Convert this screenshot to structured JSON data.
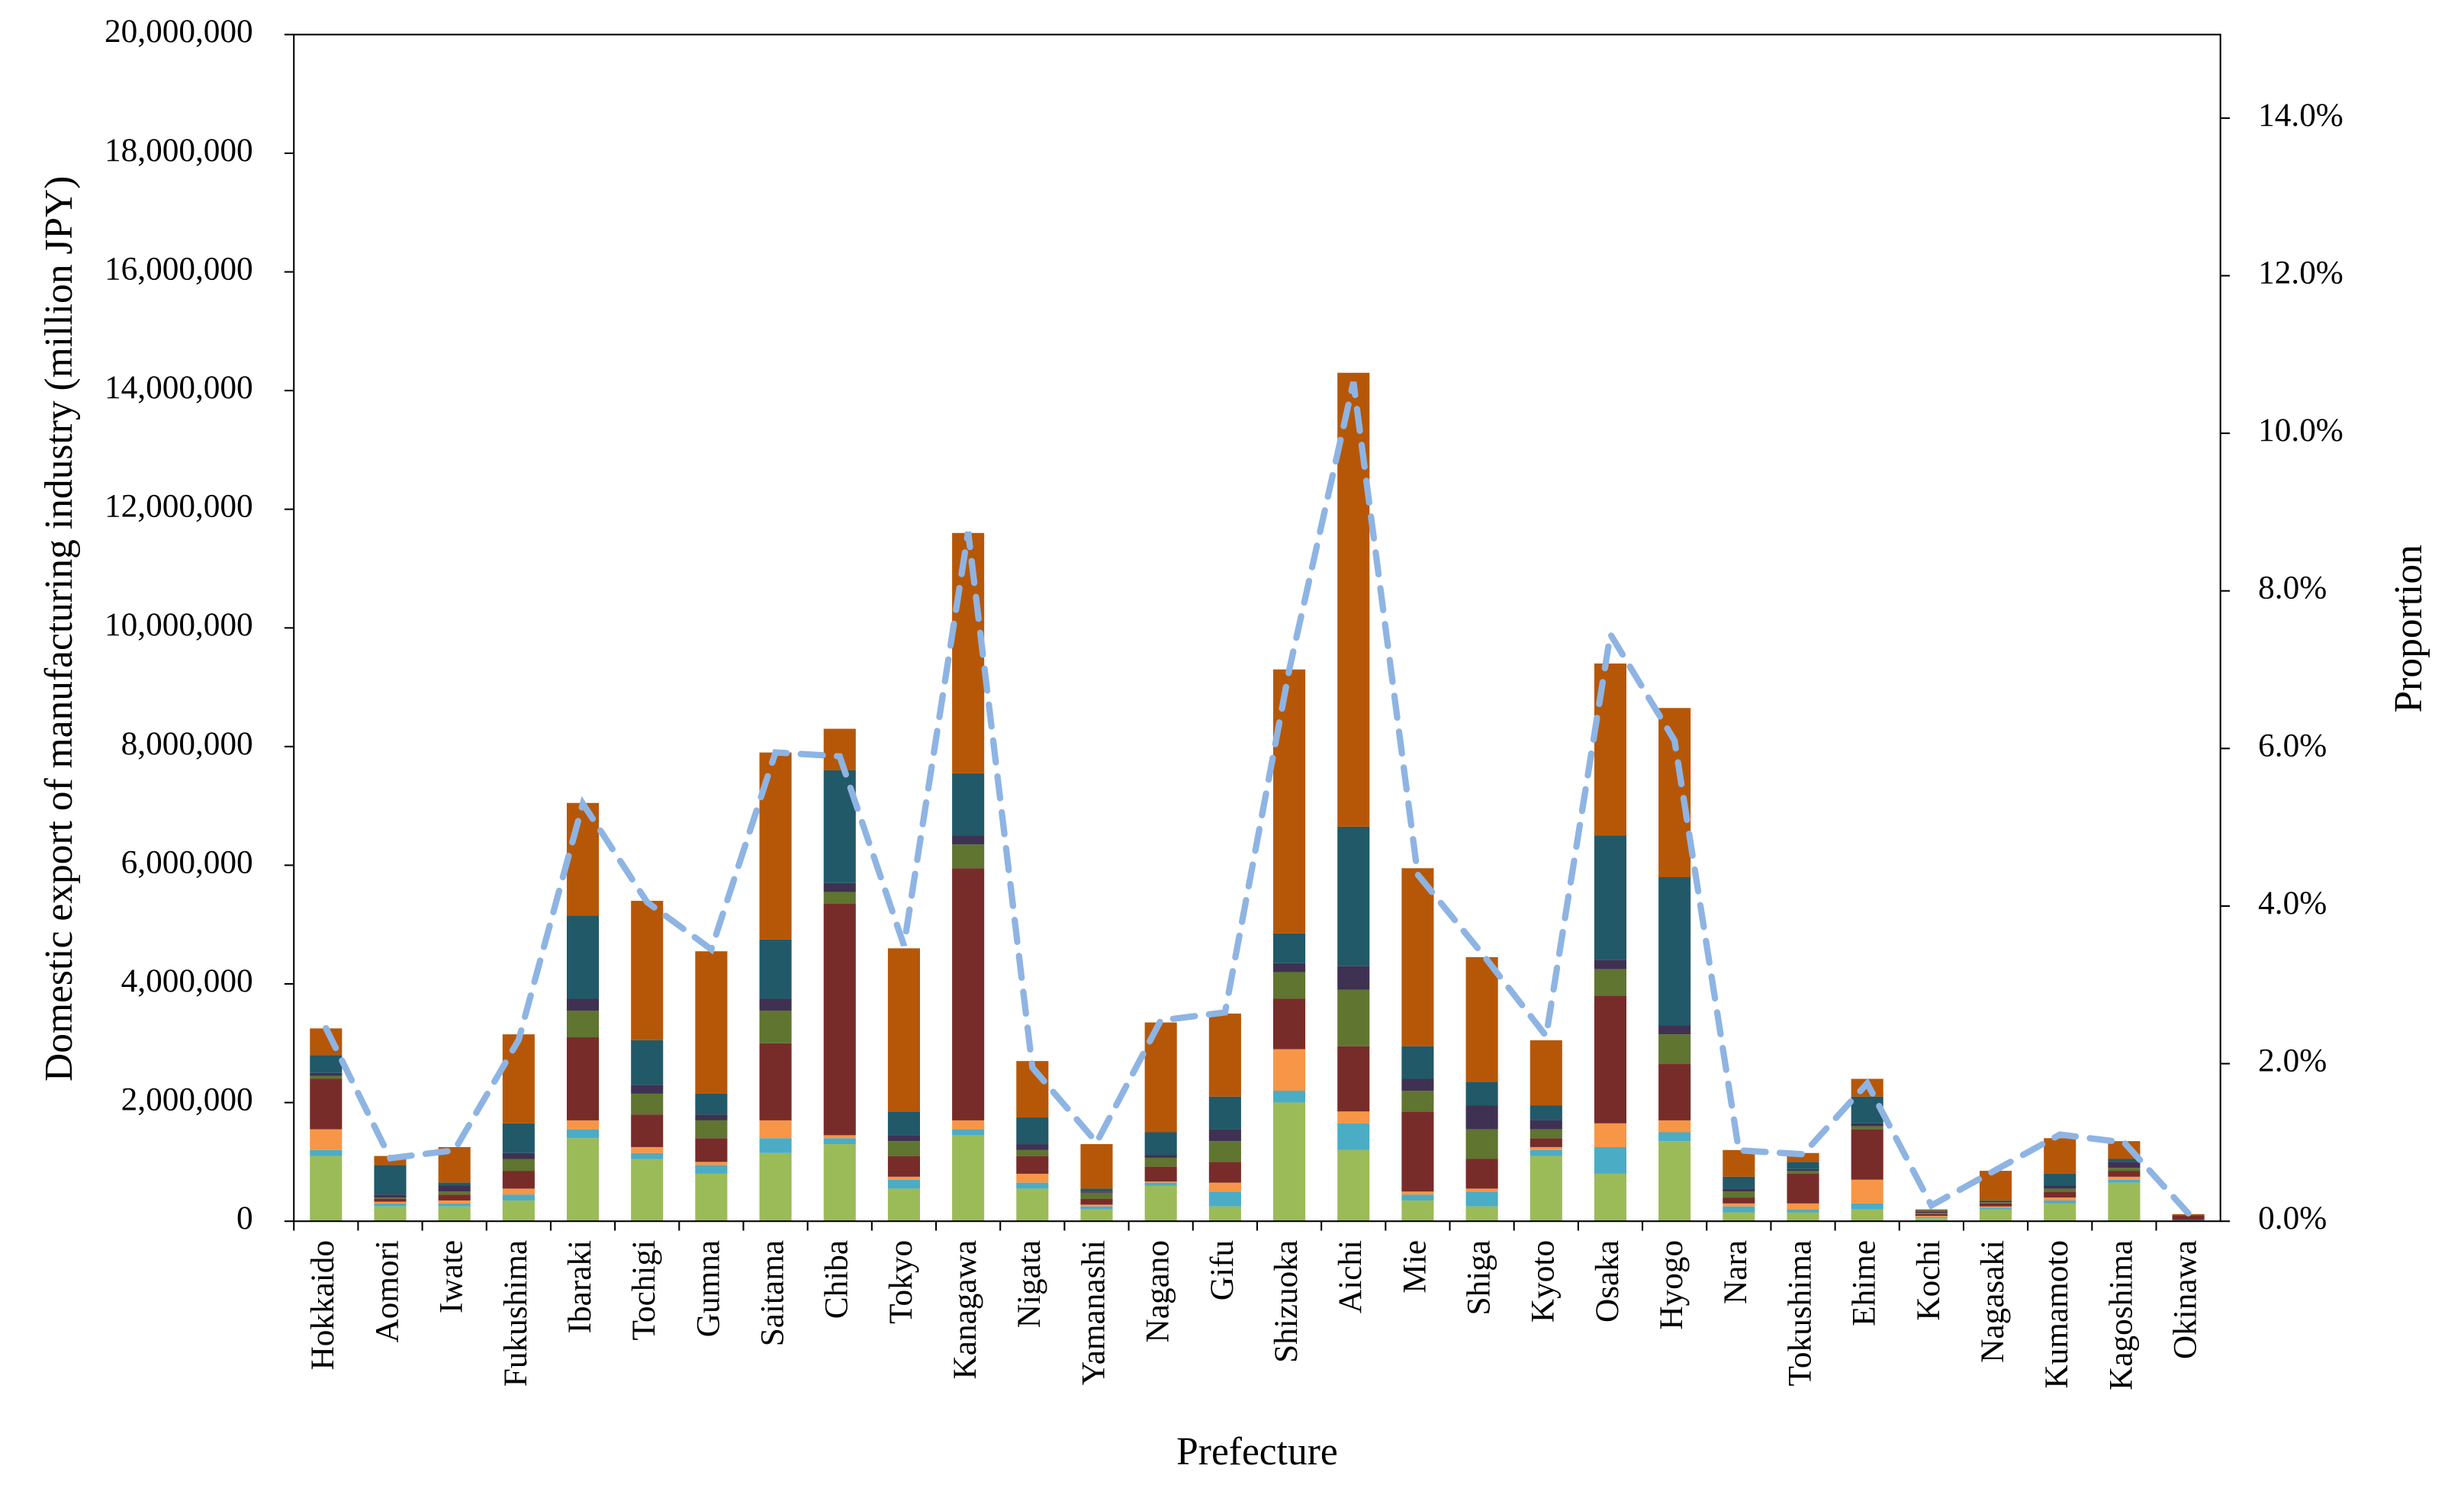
{
  "chart_data": {
    "type": "bar",
    "stacked": true,
    "x_label": "Prefecture",
    "y_label": "Domestic export of manufacturing industry (million JPY)",
    "y2_label": "Proportion",
    "categories": [
      "Hokkaido",
      "Aomori",
      "Iwate",
      "Fukushima",
      "Ibaraki",
      "Tochigi",
      "Gumna",
      "Saitama",
      "Chiba",
      "Tokyo",
      "Kanagawa",
      "Nigata",
      "Yamanashi",
      "Nagano",
      "Gifu",
      "Shizuoka",
      "Aichi",
      "Mie",
      "Shiga",
      "Kyoto",
      "Osaka",
      "Hyogo",
      "Nara",
      "Tokushima",
      "Ehime",
      "Kochi",
      "Nagasaki",
      "Kumamoto",
      "Kagoshima",
      "Okinawa"
    ],
    "ylim": [
      0,
      20000000
    ],
    "yticks": [
      0,
      {
        "value": 2000000,
        "label": "2,000,000"
      },
      {
        "value": 4000000,
        "label": "4,000,000"
      },
      {
        "value": 6000000,
        "label": "6,000,000"
      },
      {
        "value": 8000000,
        "label": "8,000,000"
      },
      {
        "value": 10000000,
        "label": "10,000,000"
      },
      {
        "value": 12000000,
        "label": "12,000,000"
      },
      {
        "value": 14000000,
        "label": "14,000,000"
      },
      {
        "value": 16000000,
        "label": "16,000,000"
      },
      {
        "value": 18000000,
        "label": "18,000,000"
      },
      {
        "value": 20000000,
        "label": "20,000,000"
      }
    ],
    "y2lim": [
      0,
      15.06
    ],
    "y2ticks": [
      {
        "value": 0,
        "label": "0.0%"
      },
      {
        "value": 2,
        "label": "2.0%"
      },
      {
        "value": 4,
        "label": "4.0%"
      },
      {
        "value": 6,
        "label": "6.0%"
      },
      {
        "value": 8,
        "label": "8.0%"
      },
      {
        "value": 10,
        "label": "10.0%"
      },
      {
        "value": 12,
        "label": "12.0%"
      },
      {
        "value": 14,
        "label": "14.0%"
      }
    ],
    "grid": false,
    "series": [
      {
        "color": "#9bbb59",
        "values": [
          1100000,
          250000,
          250000,
          350000,
          1400000,
          1050000,
          800000,
          1150000,
          1300000,
          550000,
          1450000,
          550000,
          200000,
          600000,
          250000,
          2000000,
          1200000,
          350000,
          250000,
          1100000,
          800000,
          1350000,
          150000,
          150000,
          200000,
          50000,
          200000,
          300000,
          650000,
          10000
        ]
      },
      {
        "color": "#4bacc6",
        "values": [
          100000,
          50000,
          50000,
          100000,
          150000,
          100000,
          150000,
          250000,
          100000,
          150000,
          100000,
          100000,
          50000,
          50000,
          250000,
          200000,
          450000,
          100000,
          250000,
          100000,
          450000,
          150000,
          100000,
          50000,
          100000,
          20000,
          30000,
          50000,
          50000,
          10000
        ]
      },
      {
        "color": "#f79646",
        "values": [
          350000,
          30000,
          50000,
          100000,
          150000,
          100000,
          50000,
          300000,
          50000,
          50000,
          150000,
          150000,
          30000,
          20000,
          150000,
          700000,
          200000,
          50000,
          50000,
          50000,
          400000,
          200000,
          50000,
          100000,
          400000,
          20000,
          20000,
          50000,
          50000,
          0
        ]
      },
      {
        "color": "#772c2a",
        "values": [
          850000,
          50000,
          100000,
          300000,
          1400000,
          550000,
          400000,
          1300000,
          3900000,
          350000,
          4250000,
          300000,
          100000,
          250000,
          350000,
          850000,
          1100000,
          1350000,
          500000,
          150000,
          2150000,
          950000,
          100000,
          500000,
          850000,
          30000,
          50000,
          100000,
          100000,
          80000
        ]
      },
      {
        "color": "#5f7530",
        "values": [
          50000,
          20000,
          50000,
          200000,
          450000,
          350000,
          300000,
          550000,
          200000,
          250000,
          400000,
          100000,
          100000,
          150000,
          350000,
          450000,
          950000,
          350000,
          500000,
          150000,
          450000,
          500000,
          100000,
          50000,
          50000,
          20000,
          20000,
          50000,
          50000,
          0
        ]
      },
      {
        "color": "#3f3151",
        "values": [
          50000,
          50000,
          100000,
          100000,
          200000,
          150000,
          100000,
          200000,
          150000,
          100000,
          150000,
          100000,
          20000,
          50000,
          200000,
          150000,
          400000,
          200000,
          400000,
          150000,
          150000,
          150000,
          50000,
          30000,
          50000,
          20000,
          20000,
          50000,
          100000,
          0
        ]
      },
      {
        "color": "#215968",
        "values": [
          300000,
          500000,
          50000,
          500000,
          1400000,
          750000,
          350000,
          1000000,
          1900000,
          400000,
          1050000,
          450000,
          50000,
          380000,
          550000,
          500000,
          2350000,
          550000,
          400000,
          250000,
          2100000,
          2500000,
          200000,
          120000,
          450000,
          20000,
          10000,
          200000,
          50000,
          0
        ]
      },
      {
        "color": "#b65708",
        "values": [
          450000,
          150000,
          600000,
          1500000,
          1900000,
          2350000,
          2400000,
          3150000,
          700000,
          2750000,
          4050000,
          950000,
          750000,
          1850000,
          1400000,
          4450000,
          7650000,
          3000000,
          2100000,
          1100000,
          2900000,
          2850000,
          450000,
          150000,
          300000,
          20000,
          500000,
          600000,
          300000,
          20000
        ]
      },
      {
        "type": "line",
        "axis": "y2",
        "color": "#8eb4e3",
        "dashed": true,
        "values": [
          2.45,
          0.8,
          0.9,
          2.3,
          5.3,
          4.05,
          3.45,
          5.95,
          5.9,
          3.5,
          8.75,
          1.95,
          1.0,
          2.55,
          2.65,
          7.0,
          10.65,
          4.4,
          3.4,
          2.35,
          7.45,
          6.1,
          0.9,
          0.85,
          1.75,
          0.2,
          0.65,
          1.1,
          1.0,
          0.1
        ]
      }
    ]
  }
}
